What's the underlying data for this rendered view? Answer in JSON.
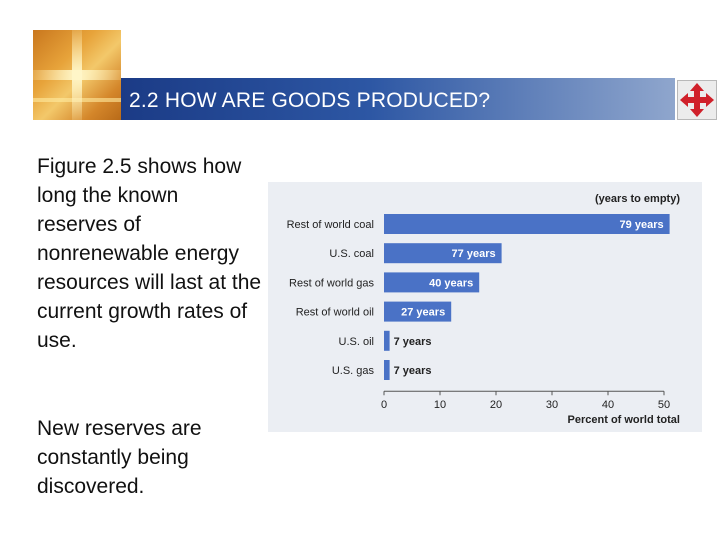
{
  "header": {
    "title": "2.2 HOW ARE GOODS PRODUCED?",
    "nav_icon": "four-arrows-icon",
    "accent_color": "#2d57a4",
    "nav_icon_color": "#d0202a"
  },
  "content": {
    "paragraph1": "Figure 2.5 shows how long the known reserves of nonrenewable energy resources will last at the current growth rates of use.",
    "paragraph2": "New reserves are constantly being discovered."
  },
  "chart_data": {
    "type": "bar",
    "orientation": "horizontal",
    "title": "(years to empty)",
    "xlabel": "Percent of world total",
    "xlim": [
      0,
      50
    ],
    "xticks": [
      0,
      10,
      20,
      30,
      40,
      50
    ],
    "categories": [
      "Rest of world coal",
      "U.S. coal",
      "Rest of world gas",
      "Rest of world oil",
      "U.S. oil",
      "U.S. gas"
    ],
    "values": [
      51,
      21,
      17,
      12,
      1,
      1
    ],
    "bar_labels": [
      "79 years",
      "77 years",
      "40 years",
      "27 years",
      "7 years",
      "7 years"
    ],
    "bar_color": "#4a72c6",
    "grid": false
  }
}
